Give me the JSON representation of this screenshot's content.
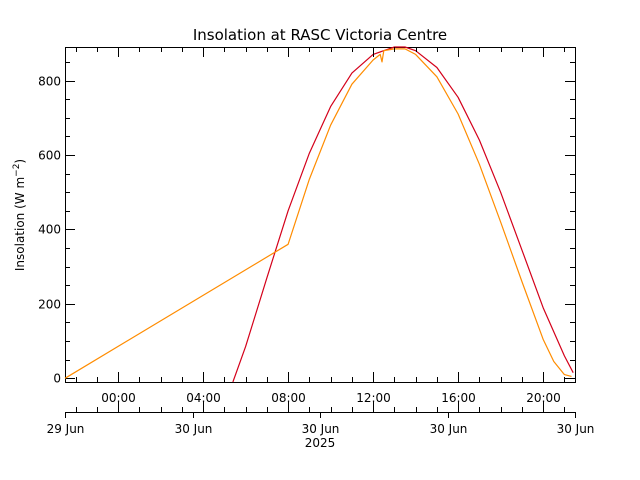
{
  "chart_data": {
    "type": "line",
    "title": "Insolation at RASC Victoria Centre",
    "ylabel": "Insolation (W m",
    "ylabel_exponent": "−2",
    "ylabel_close": ")",
    "ylim": [
      -10,
      890
    ],
    "xlim": [
      "2025-06-29T21:30",
      "2025-06-30T21:30"
    ],
    "grid": false,
    "yticks": [
      0,
      200,
      400,
      600,
      800
    ],
    "ytick_labels": [
      "0",
      "200",
      "400",
      "600",
      "800"
    ],
    "xticks": [
      "2025-06-30T00:00",
      "2025-06-30T04:00",
      "2025-06-30T08:00",
      "2025-06-30T12:00",
      "2025-06-30T16:00",
      "2025-06-30T20:00"
    ],
    "xtick_labels": [
      "00:00",
      "04:00",
      "08:00",
      "12:00",
      "16:00",
      "20:00"
    ],
    "date_labels": [
      "29 Jun",
      "30 Jun",
      "30 Jun",
      "30 Jun",
      "30 Jun"
    ],
    "year_label": "2025",
    "series": [
      {
        "color": "#d4001a",
        "x": [
          "2025-06-30T05:24",
          "2025-06-30T06:00",
          "2025-06-30T07:00",
          "2025-06-30T08:00",
          "2025-06-30T09:00",
          "2025-06-30T10:00",
          "2025-06-30T11:00",
          "2025-06-30T12:00",
          "2025-06-30T13:00",
          "2025-06-30T13:30",
          "2025-06-30T14:00",
          "2025-06-30T15:00",
          "2025-06-30T16:00",
          "2025-06-30T17:00",
          "2025-06-30T18:00",
          "2025-06-30T19:00",
          "2025-06-30T20:00",
          "2025-06-30T21:00",
          "2025-06-30T21:25"
        ],
        "y": [
          -10,
          85,
          270,
          450,
          605,
          730,
          820,
          870,
          890,
          890,
          880,
          835,
          755,
          640,
          500,
          345,
          190,
          60,
          15
        ]
      },
      {
        "color": "#ff8c00",
        "x": [
          "2025-06-29T21:30",
          "2025-06-30T08:00",
          "2025-06-30T09:00",
          "2025-06-30T10:00",
          "2025-06-30T11:00",
          "2025-06-30T12:00",
          "2025-06-30T12:20",
          "2025-06-30T12:25",
          "2025-06-30T12:30",
          "2025-06-30T13:00",
          "2025-06-30T13:30",
          "2025-06-30T14:00",
          "2025-06-30T15:00",
          "2025-06-30T16:00",
          "2025-06-30T17:00",
          "2025-06-30T18:00",
          "2025-06-30T19:00",
          "2025-06-30T20:00",
          "2025-06-30T20:30",
          "2025-06-30T21:00",
          "2025-06-30T21:20"
        ],
        "y": [
          0,
          360,
          535,
          680,
          790,
          855,
          870,
          850,
          880,
          885,
          885,
          870,
          810,
          710,
          575,
          420,
          260,
          105,
          45,
          10,
          5
        ]
      }
    ]
  }
}
